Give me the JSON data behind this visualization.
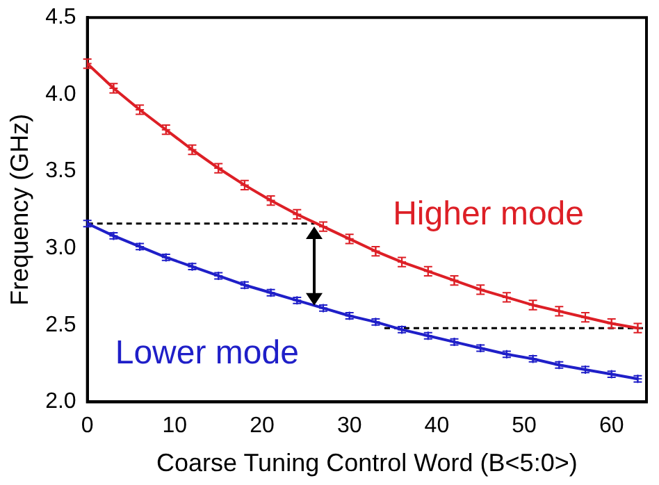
{
  "chart_data": {
    "type": "line",
    "xlabel": "Coarse Tuning Control Word (B<5:0>)",
    "ylabel": "Frequency (GHz)",
    "xlim": [
      0,
      64
    ],
    "xticks": [
      0,
      10,
      20,
      30,
      40,
      50,
      60
    ],
    "ylim": [
      2.0,
      4.5
    ],
    "yticks": [
      {
        "value": 2.0,
        "label": "2.0"
      },
      {
        "value": 2.5,
        "label": "2.5"
      },
      {
        "value": 3.0,
        "label": "3.0"
      },
      {
        "value": 3.5,
        "label": "3.5"
      },
      {
        "value": 4.0,
        "label": "4.0"
      },
      {
        "value": 4.5,
        "label": "4.5"
      }
    ],
    "grid": false,
    "legend": false,
    "series": [
      {
        "name": "Higher mode",
        "color": "#dd1f26",
        "marker": "cross",
        "x": [
          0,
          3,
          6,
          9,
          12,
          15,
          18,
          21,
          24,
          27,
          30,
          33,
          36,
          39,
          42,
          45,
          48,
          51,
          54,
          57,
          60,
          63
        ],
        "values": [
          4.2,
          4.04,
          3.9,
          3.77,
          3.64,
          3.52,
          3.41,
          3.31,
          3.22,
          3.14,
          3.06,
          2.98,
          2.91,
          2.85,
          2.79,
          2.73,
          2.68,
          2.63,
          2.59,
          2.55,
          2.51,
          2.48
        ],
        "errors": [
          0.03,
          0.03,
          0.03,
          0.03,
          0.03,
          0.03,
          0.03,
          0.03,
          0.03,
          0.03,
          0.03,
          0.03,
          0.03,
          0.03,
          0.03,
          0.03,
          0.03,
          0.03,
          0.03,
          0.03,
          0.03,
          0.03
        ]
      },
      {
        "name": "Lower mode",
        "color": "#1f1fc8",
        "marker": "cross",
        "x": [
          0,
          3,
          6,
          9,
          12,
          15,
          18,
          21,
          24,
          27,
          30,
          33,
          36,
          39,
          42,
          45,
          48,
          51,
          54,
          57,
          60,
          63
        ],
        "values": [
          3.16,
          3.08,
          3.01,
          2.94,
          2.88,
          2.82,
          2.76,
          2.71,
          2.66,
          2.61,
          2.56,
          2.52,
          2.47,
          2.43,
          2.39,
          2.35,
          2.31,
          2.28,
          2.24,
          2.21,
          2.18,
          2.15
        ],
        "errors": [
          0.02,
          0.02,
          0.02,
          0.02,
          0.02,
          0.02,
          0.02,
          0.02,
          0.02,
          0.02,
          0.02,
          0.02,
          0.02,
          0.02,
          0.02,
          0.02,
          0.02,
          0.02,
          0.02,
          0.02,
          0.02,
          0.02
        ]
      },
      {
        "type": "line",
        "color": "#000000",
        "line_style": "dashed",
        "x": [
          0,
          26
        ],
        "values": [
          3.16,
          3.16
        ]
      },
      {
        "type": "line",
        "color": "#000000",
        "line_style": "dashed",
        "x": [
          34,
          64
        ],
        "values": [
          2.48,
          2.48
        ]
      }
    ]
  }
}
